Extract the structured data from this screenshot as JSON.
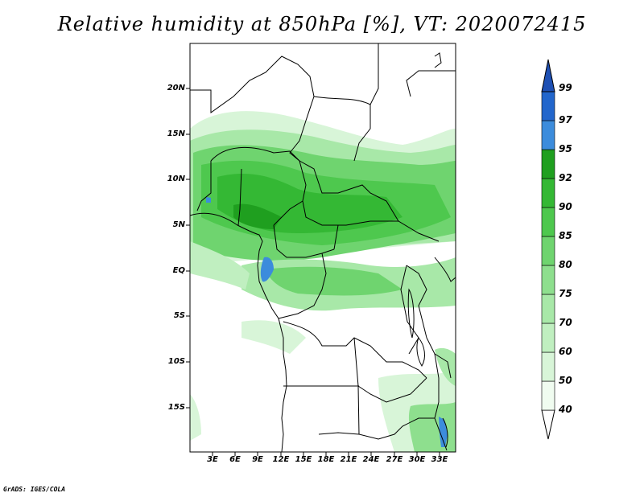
{
  "title": "Relative humidity at 850hPa [%], VT: 2020072415",
  "credit": "GrADS: IGES/COLA",
  "map": {
    "lat_ticks": [
      "20N",
      "15N",
      "10N",
      "5N",
      "EQ",
      "5S",
      "10S",
      "15S"
    ],
    "lon_ticks": [
      "3E",
      "6E",
      "9E",
      "12E",
      "15E",
      "18E",
      "21E",
      "24E",
      "27E",
      "30E",
      "33E"
    ]
  },
  "colorbar": {
    "levels": [
      "40",
      "50",
      "60",
      "70",
      "75",
      "80",
      "85",
      "90",
      "92",
      "95",
      "97",
      "99"
    ],
    "colors": [
      "#f0fcf0",
      "#d8f5d8",
      "#c0efc0",
      "#a8e8a8",
      "#8edf8e",
      "#6fd46f",
      "#4ec84e",
      "#34b834",
      "#1f9f1f",
      "#3c8cdc",
      "#2266cc",
      "#1e50b4"
    ]
  }
}
